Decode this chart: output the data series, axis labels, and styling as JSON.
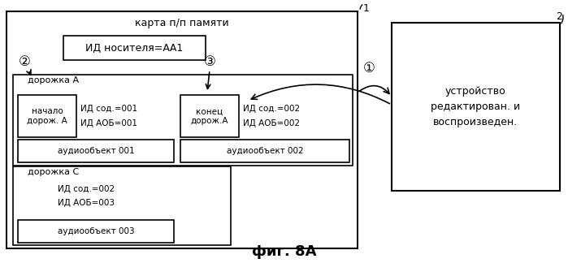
{
  "bg_color": "#ffffff",
  "fig_title": "фиг. 8А",
  "box1_label": "карта п/п памяти",
  "box2_label": "устройство\nредактирован. и\nвоспроизведен.",
  "media_id_label": "ИД носителя=АА1",
  "track_a_label": "дорожка А",
  "track_c_label": "дорожка С",
  "start_track_label": "начало\nдорож. А",
  "end_track_label": "конец\nдорож.А",
  "id_sod_001": "ИД сод.=001",
  "id_aob_001": "ИД АОБ=001",
  "id_sod_002": "ИД сод.=002",
  "id_aob_002": "ИД АОБ=002",
  "id_sod_002c": "ИД сод.=002",
  "id_aob_003": "ИД АОБ=003",
  "audio_001": "аудиообъект 001",
  "audio_002": "аудиообъект 002",
  "audio_003": "аудиообъект 003",
  "label1": "1",
  "label2": "2",
  "circle1": "①",
  "circle2": "②",
  "circle3": "③"
}
